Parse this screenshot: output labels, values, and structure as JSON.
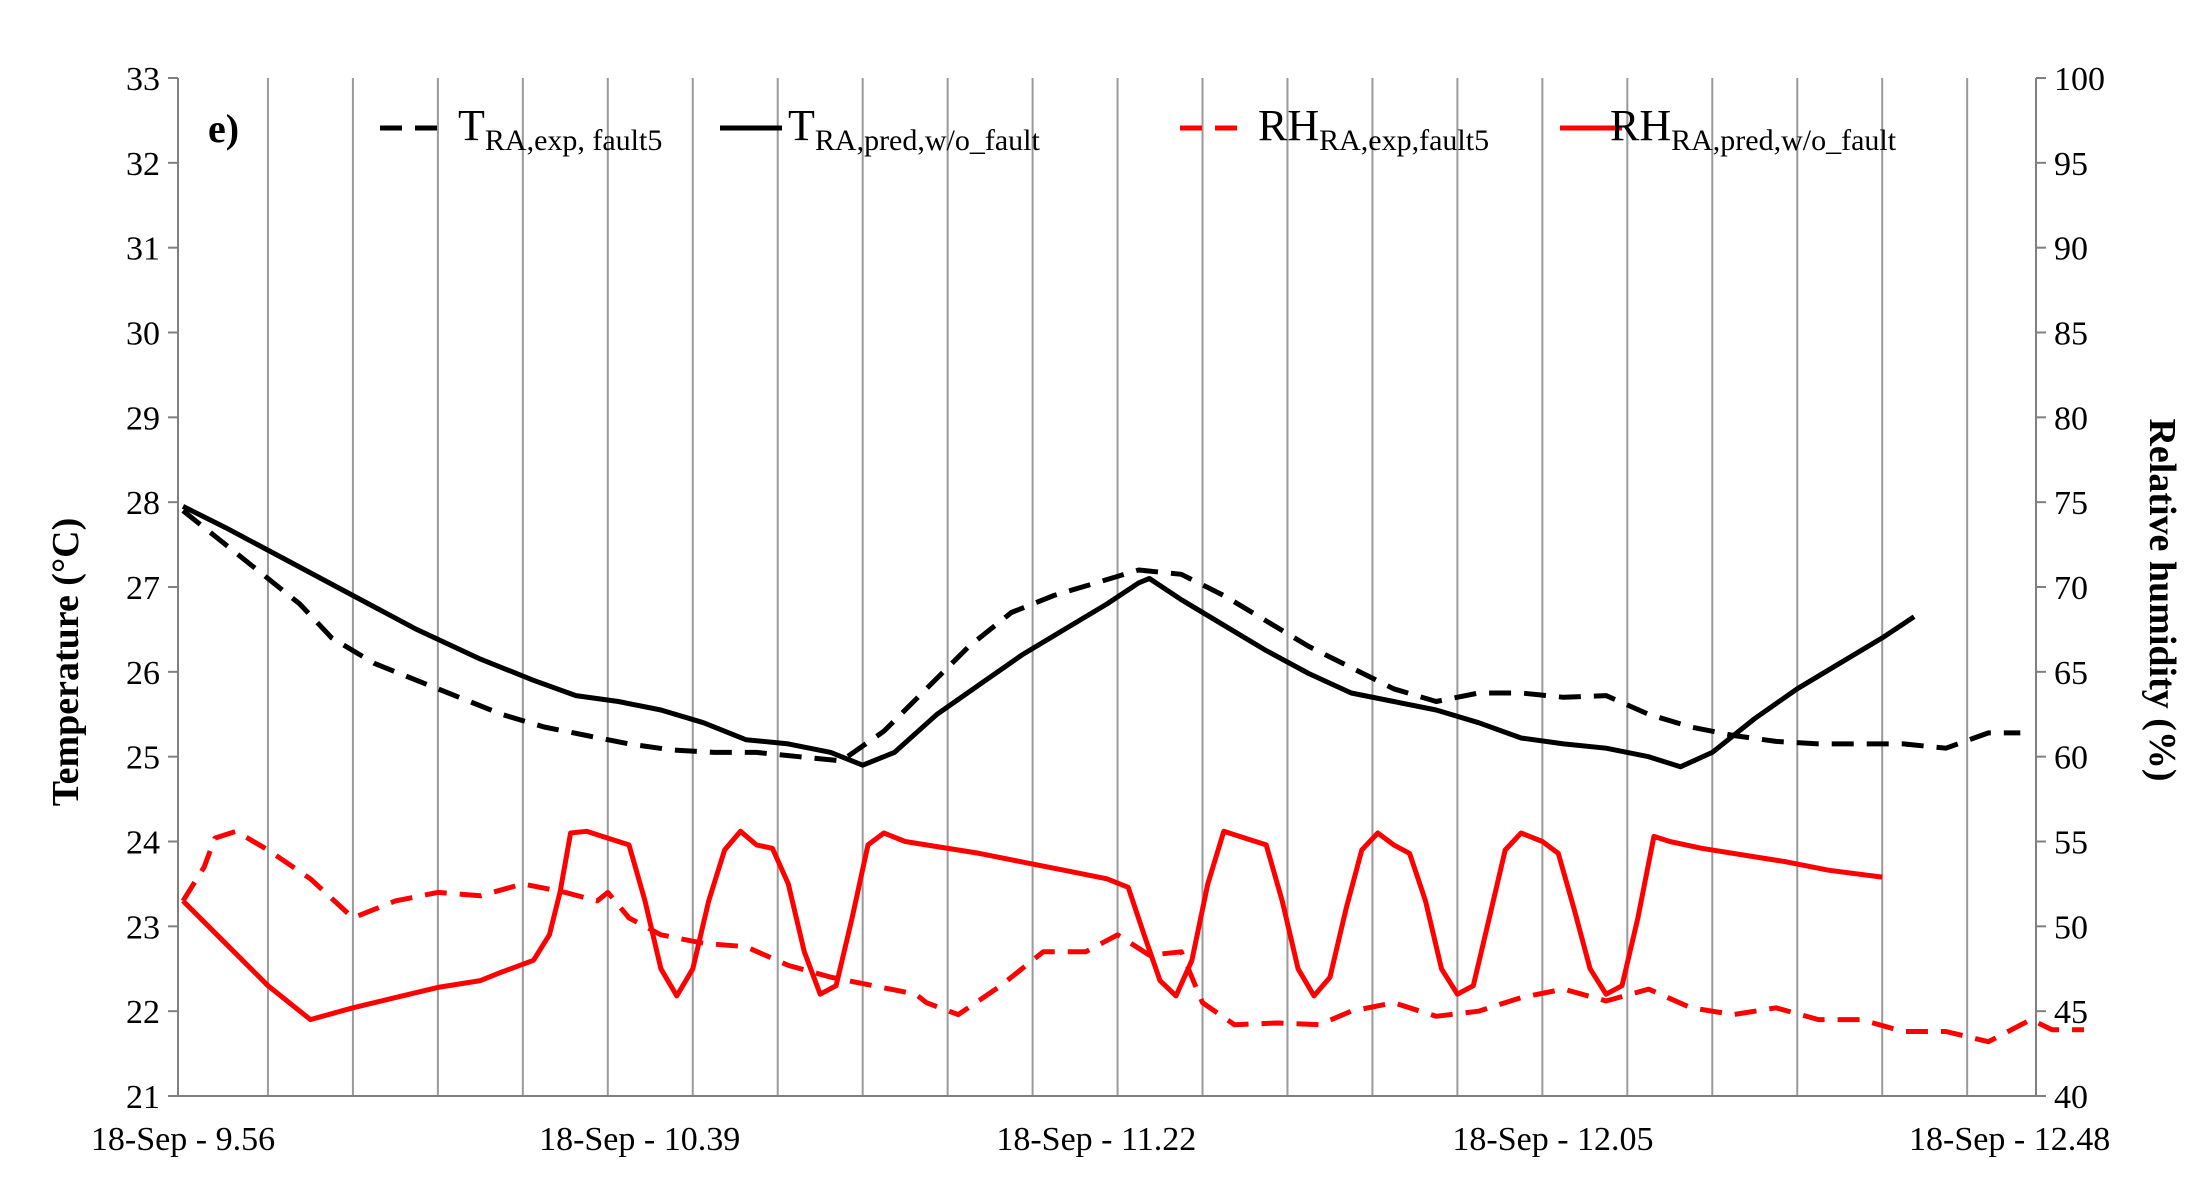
{
  "chart_data": {
    "type": "line",
    "panel_label": "e)",
    "y_left": {
      "label": "Temperature (°C)",
      "min": 21,
      "max": 33,
      "ticks": [
        21,
        22,
        23,
        24,
        25,
        26,
        27,
        28,
        29,
        30,
        31,
        32,
        33
      ]
    },
    "y_right": {
      "label": "Relative humidity (%)",
      "min": 40,
      "max": 100,
      "ticks": [
        40,
        45,
        50,
        55,
        60,
        65,
        70,
        75,
        80,
        85,
        90,
        95,
        100
      ]
    },
    "x": {
      "unit": "minutes since 9:56",
      "min": 0,
      "max": 172,
      "gridlines": [
        8,
        16,
        24,
        32,
        40,
        48,
        56,
        64,
        72,
        80,
        88,
        96,
        104,
        112,
        120,
        128,
        136,
        144,
        152,
        160,
        168
      ],
      "tick_labels": [
        {
          "t": 0,
          "label": "18-Sep - 9.56"
        },
        {
          "t": 43,
          "label": "18-Sep - 10.39"
        },
        {
          "t": 86,
          "label": "18-Sep - 11.22"
        },
        {
          "t": 129,
          "label": "18-Sep - 12.05"
        },
        {
          "t": 172,
          "label": "18-Sep - 12.48"
        }
      ]
    },
    "legend": [
      {
        "main": "T",
        "sub": "RA,exp, fault5",
        "series": "T_exp"
      },
      {
        "main": "T",
        "sub": "RA,pred,w/o_fault",
        "series": "T_pred"
      },
      {
        "main": "RH",
        "sub": "RA,exp,fault5",
        "series": "RH_exp"
      },
      {
        "main": "RH",
        "sub": "RA,pred,w/o_fault",
        "series": "RH_pred"
      }
    ],
    "series": [
      {
        "name": "T_exp",
        "axis": "left",
        "color": "#000000",
        "dash": true,
        "points": [
          [
            0,
            27.9
          ],
          [
            3,
            27.6
          ],
          [
            7,
            27.2
          ],
          [
            11,
            26.8
          ],
          [
            14,
            26.4
          ],
          [
            18,
            26.1
          ],
          [
            22,
            25.9
          ],
          [
            26,
            25.7
          ],
          [
            30,
            25.5
          ],
          [
            34,
            25.35
          ],
          [
            38,
            25.25
          ],
          [
            42,
            25.15
          ],
          [
            46,
            25.08
          ],
          [
            50,
            25.05
          ],
          [
            54,
            25.05
          ],
          [
            58,
            25.0
          ],
          [
            62,
            24.95
          ],
          [
            66,
            25.3
          ],
          [
            70,
            25.8
          ],
          [
            74,
            26.3
          ],
          [
            78,
            26.7
          ],
          [
            82,
            26.9
          ],
          [
            86,
            27.05
          ],
          [
            90,
            27.2
          ],
          [
            94,
            27.15
          ],
          [
            98,
            26.9
          ],
          [
            102,
            26.6
          ],
          [
            106,
            26.3
          ],
          [
            110,
            26.05
          ],
          [
            114,
            25.8
          ],
          [
            118,
            25.65
          ],
          [
            122,
            25.75
          ],
          [
            126,
            25.75
          ],
          [
            130,
            25.7
          ],
          [
            134,
            25.72
          ],
          [
            138,
            25.5
          ],
          [
            142,
            25.35
          ],
          [
            146,
            25.25
          ],
          [
            150,
            25.18
          ],
          [
            154,
            25.15
          ],
          [
            158,
            25.15
          ],
          [
            162,
            25.15
          ],
          [
            166,
            25.1
          ],
          [
            170,
            25.28
          ],
          [
            173,
            25.28
          ]
        ]
      },
      {
        "name": "T_pred",
        "axis": "left",
        "color": "#000000",
        "dash": false,
        "points": [
          [
            0,
            27.95
          ],
          [
            4,
            27.7
          ],
          [
            10,
            27.3
          ],
          [
            16,
            26.9
          ],
          [
            22,
            26.5
          ],
          [
            28,
            26.15
          ],
          [
            33,
            25.9
          ],
          [
            37,
            25.72
          ],
          [
            41,
            25.65
          ],
          [
            45,
            25.55
          ],
          [
            49,
            25.4
          ],
          [
            53,
            25.2
          ],
          [
            57,
            25.15
          ],
          [
            61,
            25.05
          ],
          [
            64,
            24.9
          ],
          [
            67,
            25.05
          ],
          [
            71,
            25.5
          ],
          [
            75,
            25.85
          ],
          [
            79,
            26.2
          ],
          [
            83,
            26.5
          ],
          [
            87,
            26.8
          ],
          [
            90,
            27.05
          ],
          [
            91,
            27.1
          ],
          [
            94,
            26.85
          ],
          [
            98,
            26.55
          ],
          [
            102,
            26.25
          ],
          [
            106,
            25.98
          ],
          [
            110,
            25.75
          ],
          [
            114,
            25.65
          ],
          [
            118,
            25.55
          ],
          [
            122,
            25.4
          ],
          [
            126,
            25.22
          ],
          [
            130,
            25.15
          ],
          [
            134,
            25.1
          ],
          [
            138,
            25.0
          ],
          [
            141,
            24.88
          ],
          [
            144,
            25.05
          ],
          [
            148,
            25.45
          ],
          [
            152,
            25.8
          ],
          [
            156,
            26.1
          ],
          [
            160,
            26.4
          ],
          [
            163,
            26.65
          ]
        ]
      },
      {
        "name": "RH_exp",
        "axis": "right",
        "color": "#ff0000",
        "dash": true,
        "points": [
          [
            0,
            51.5
          ],
          [
            2,
            53.5
          ],
          [
            3,
            55.2
          ],
          [
            5,
            55.6
          ],
          [
            8,
            54.5
          ],
          [
            12,
            52.8
          ],
          [
            16,
            50.5
          ],
          [
            20,
            51.5
          ],
          [
            24,
            52.0
          ],
          [
            28,
            51.8
          ],
          [
            32,
            52.5
          ],
          [
            36,
            52.0
          ],
          [
            39,
            51.5
          ],
          [
            40,
            52.0
          ],
          [
            42,
            50.5
          ],
          [
            45,
            49.5
          ],
          [
            49,
            49.0
          ],
          [
            53,
            48.8
          ],
          [
            57,
            47.7
          ],
          [
            61,
            47.0
          ],
          [
            65,
            46.5
          ],
          [
            69,
            46.0
          ],
          [
            70,
            45.5
          ],
          [
            73,
            44.8
          ],
          [
            77,
            46.5
          ],
          [
            81,
            48.5
          ],
          [
            85,
            48.5
          ],
          [
            88,
            49.5
          ],
          [
            91,
            48.3
          ],
          [
            94,
            48.5
          ],
          [
            96,
            45.5
          ],
          [
            99,
            44.2
          ],
          [
            103,
            44.3
          ],
          [
            107,
            44.2
          ],
          [
            110,
            45.0
          ],
          [
            114,
            45.5
          ],
          [
            118,
            44.7
          ],
          [
            122,
            45.0
          ],
          [
            126,
            45.8
          ],
          [
            130,
            46.3
          ],
          [
            134,
            45.6
          ],
          [
            138,
            46.3
          ],
          [
            142,
            45.2
          ],
          [
            146,
            44.8
          ],
          [
            150,
            45.2
          ],
          [
            154,
            44.5
          ],
          [
            158,
            44.5
          ],
          [
            162,
            43.8
          ],
          [
            166,
            43.8
          ],
          [
            170,
            43.2
          ],
          [
            174,
            44.5
          ],
          [
            176,
            43.9
          ],
          [
            179,
            43.9
          ]
        ]
      },
      {
        "name": "RH_pred",
        "axis": "right",
        "color": "#ff0000",
        "dash": false,
        "points": [
          [
            0,
            51.5
          ],
          [
            4,
            49.0
          ],
          [
            8,
            46.5
          ],
          [
            12,
            44.5
          ],
          [
            16,
            45.2
          ],
          [
            20,
            45.8
          ],
          [
            24,
            46.4
          ],
          [
            28,
            46.8
          ],
          [
            30,
            47.3
          ],
          [
            33,
            48.0
          ],
          [
            34.5,
            49.5
          ],
          [
            35.5,
            52
          ],
          [
            36.5,
            55.5
          ],
          [
            38,
            55.6
          ],
          [
            40,
            55.2
          ],
          [
            42,
            54.8
          ],
          [
            43.5,
            51.5
          ],
          [
            45,
            47.5
          ],
          [
            46.5,
            45.9
          ],
          [
            48,
            47.5
          ],
          [
            49.5,
            51.5
          ],
          [
            51,
            54.5
          ],
          [
            52.5,
            55.6
          ],
          [
            54,
            54.8
          ],
          [
            55.5,
            54.6
          ],
          [
            57,
            52.5
          ],
          [
            58.5,
            48.5
          ],
          [
            60,
            46.0
          ],
          [
            61.5,
            46.5
          ],
          [
            63,
            50.5
          ],
          [
            64.5,
            54.8
          ],
          [
            66,
            55.5
          ],
          [
            68,
            55.0
          ],
          [
            71,
            54.7
          ],
          [
            75,
            54.3
          ],
          [
            79,
            53.8
          ],
          [
            83,
            53.3
          ],
          [
            87,
            52.8
          ],
          [
            89,
            52.3
          ],
          [
            90.5,
            49.5
          ],
          [
            92,
            46.8
          ],
          [
            93.5,
            45.9
          ],
          [
            95,
            48.0
          ],
          [
            96.5,
            52.5
          ],
          [
            98,
            55.6
          ],
          [
            100,
            55.2
          ],
          [
            102,
            54.8
          ],
          [
            103.5,
            51.5
          ],
          [
            105,
            47.5
          ],
          [
            106.5,
            45.9
          ],
          [
            108,
            47.0
          ],
          [
            109.5,
            51.0
          ],
          [
            111,
            54.5
          ],
          [
            112.5,
            55.5
          ],
          [
            114,
            54.8
          ],
          [
            115.5,
            54.3
          ],
          [
            117,
            51.5
          ],
          [
            118.5,
            47.5
          ],
          [
            120,
            46.0
          ],
          [
            121.5,
            46.5
          ],
          [
            123,
            50.5
          ],
          [
            124.5,
            54.5
          ],
          [
            126,
            55.5
          ],
          [
            128,
            55.0
          ],
          [
            129.5,
            54.3
          ],
          [
            131,
            51.0
          ],
          [
            132.5,
            47.5
          ],
          [
            134,
            46.0
          ],
          [
            135.5,
            46.5
          ],
          [
            137,
            50.5
          ],
          [
            138.5,
            55.3
          ],
          [
            140,
            55.0
          ],
          [
            143,
            54.6
          ],
          [
            147,
            54.2
          ],
          [
            151,
            53.8
          ],
          [
            155,
            53.3
          ],
          [
            160,
            52.9
          ]
        ]
      }
    ]
  }
}
